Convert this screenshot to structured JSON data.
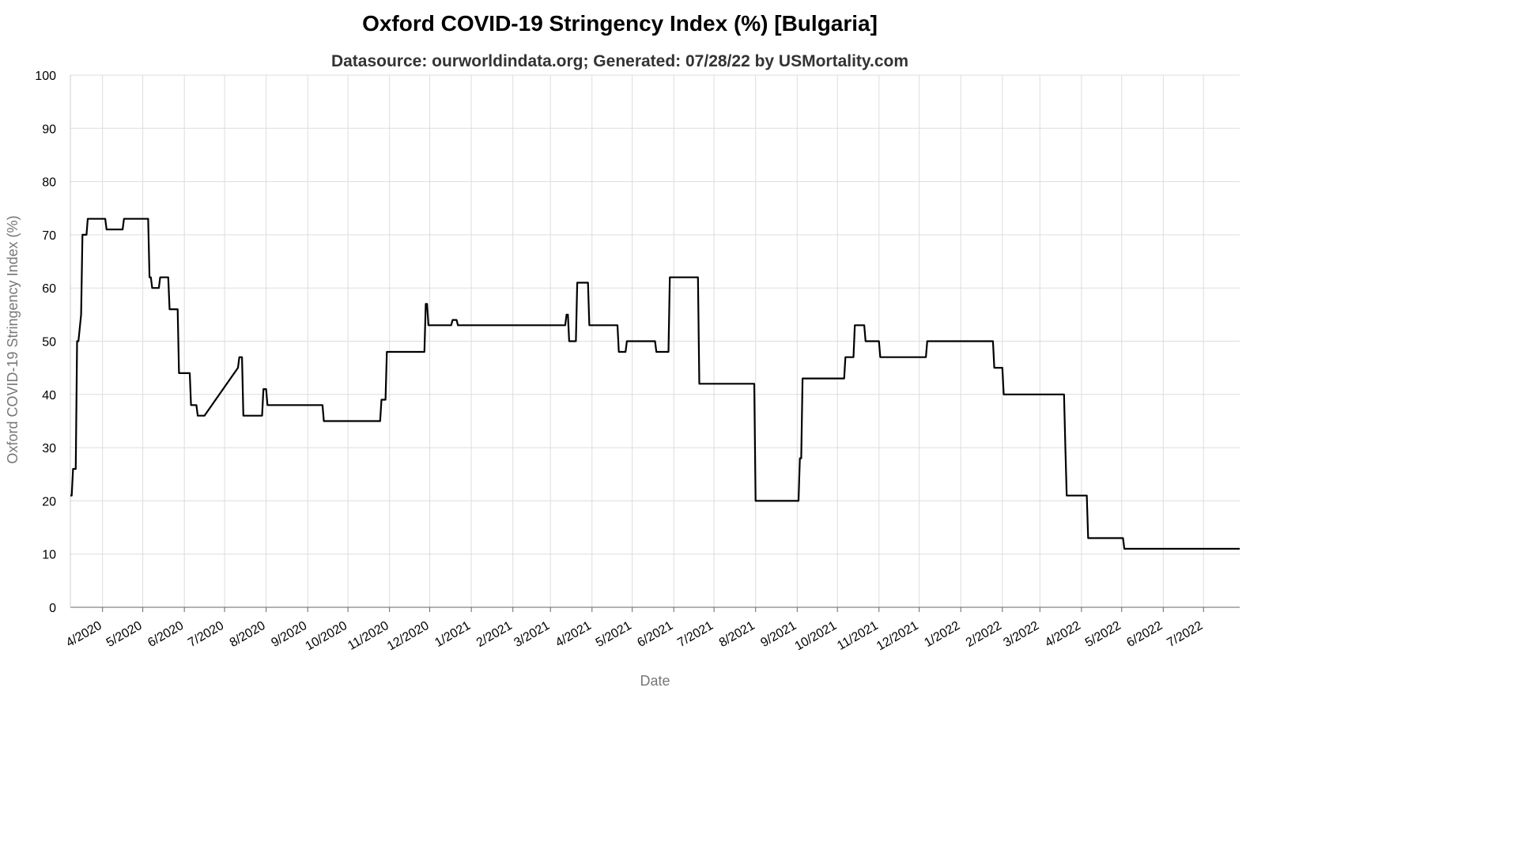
{
  "chart_data": {
    "type": "line",
    "title": "Oxford COVID-19 Stringency Index (%) [Bulgaria]",
    "subtitle": "Datasource: ourworldindata.org; Generated: 07/28/22 by USMortality.com",
    "xlabel": "Date",
    "ylabel": "Oxford COVID-19 Stringency Index (%)",
    "ylim": [
      0,
      100
    ],
    "yticks": [
      0,
      10,
      20,
      30,
      40,
      50,
      60,
      70,
      80,
      90,
      100
    ],
    "xlim": [
      "2020-03-08",
      "2022-07-28"
    ],
    "xticks": [
      {
        "date": "2020-04-01",
        "label": "4/2020"
      },
      {
        "date": "2020-05-01",
        "label": "5/2020"
      },
      {
        "date": "2020-06-01",
        "label": "6/2020"
      },
      {
        "date": "2020-07-01",
        "label": "7/2020"
      },
      {
        "date": "2020-08-01",
        "label": "8/2020"
      },
      {
        "date": "2020-09-01",
        "label": "9/2020"
      },
      {
        "date": "2020-10-01",
        "label": "10/2020"
      },
      {
        "date": "2020-11-01",
        "label": "11/2020"
      },
      {
        "date": "2020-12-01",
        "label": "12/2020"
      },
      {
        "date": "2021-01-01",
        "label": "1/2021"
      },
      {
        "date": "2021-02-01",
        "label": "2/2021"
      },
      {
        "date": "2021-03-01",
        "label": "3/2021"
      },
      {
        "date": "2021-04-01",
        "label": "4/2021"
      },
      {
        "date": "2021-05-01",
        "label": "5/2021"
      },
      {
        "date": "2021-06-01",
        "label": "6/2021"
      },
      {
        "date": "2021-07-01",
        "label": "7/2021"
      },
      {
        "date": "2021-08-01",
        "label": "8/2021"
      },
      {
        "date": "2021-09-01",
        "label": "9/2021"
      },
      {
        "date": "2021-10-01",
        "label": "10/2021"
      },
      {
        "date": "2021-11-01",
        "label": "11/2021"
      },
      {
        "date": "2021-12-01",
        "label": "12/2021"
      },
      {
        "date": "2022-01-01",
        "label": "1/2022"
      },
      {
        "date": "2022-02-01",
        "label": "2/2022"
      },
      {
        "date": "2022-03-01",
        "label": "3/2022"
      },
      {
        "date": "2022-04-01",
        "label": "4/2022"
      },
      {
        "date": "2022-05-01",
        "label": "5/2022"
      },
      {
        "date": "2022-06-01",
        "label": "6/2022"
      },
      {
        "date": "2022-07-01",
        "label": "7/2022"
      }
    ],
    "grid": true,
    "line_color": "#000000",
    "series": [
      {
        "x": [
          "2020-03-08",
          "2020-03-09",
          "2020-03-10",
          "2020-03-12",
          "2020-03-13",
          "2020-03-14",
          "2020-03-16",
          "2020-03-17",
          "2020-03-18",
          "2020-03-20",
          "2020-03-21",
          "2020-03-24",
          "2020-03-25",
          "2020-04-03",
          "2020-04-04",
          "2020-04-16",
          "2020-04-17",
          "2020-05-05",
          "2020-05-06",
          "2020-05-07",
          "2020-05-08",
          "2020-05-10",
          "2020-05-13",
          "2020-05-14",
          "2020-05-20",
          "2020-05-21",
          "2020-05-27",
          "2020-05-28",
          "2020-06-05",
          "2020-06-06",
          "2020-06-10",
          "2020-06-11",
          "2020-06-15",
          "2020-06-16",
          "2020-07-11",
          "2020-07-12",
          "2020-07-14",
          "2020-07-15",
          "2020-07-29",
          "2020-07-30",
          "2020-08-01",
          "2020-08-02",
          "2020-09-12",
          "2020-09-13",
          "2020-10-25",
          "2020-10-26",
          "2020-10-29",
          "2020-10-30",
          "2020-11-27",
          "2020-11-28",
          "2020-11-29",
          "2020-11-30",
          "2020-12-17",
          "2020-12-18",
          "2020-12-21",
          "2020-12-22",
          "2021-03-12",
          "2021-03-13",
          "2021-03-14",
          "2021-03-15",
          "2021-03-20",
          "2021-03-21",
          "2021-03-29",
          "2021-03-30",
          "2021-04-20",
          "2021-04-21",
          "2021-04-26",
          "2021-04-27",
          "2021-05-18",
          "2021-05-19",
          "2021-05-28",
          "2021-05-29",
          "2021-06-19",
          "2021-06-20",
          "2021-07-31",
          "2021-08-01",
          "2021-09-02",
          "2021-09-03",
          "2021-09-04",
          "2021-09-05",
          "2021-10-06",
          "2021-10-07",
          "2021-10-13",
          "2021-10-14",
          "2021-10-21",
          "2021-10-22",
          "2021-11-01",
          "2021-11-02",
          "2021-12-06",
          "2021-12-07",
          "2022-01-25",
          "2022-01-26",
          "2022-02-01",
          "2022-02-02",
          "2022-03-19",
          "2022-03-20",
          "2022-03-21",
          "2022-04-05",
          "2022-04-06",
          "2022-05-02",
          "2022-05-03",
          "2022-07-28"
        ],
        "y": [
          21,
          21,
          26,
          26,
          50,
          50,
          55,
          70,
          70,
          70,
          73,
          73,
          73,
          73,
          71,
          71,
          73,
          73,
          62,
          62,
          60,
          60,
          60,
          62,
          62,
          56,
          56,
          44,
          44,
          38,
          38,
          36,
          36,
          36,
          45,
          47,
          47,
          36,
          36,
          41,
          41,
          38,
          38,
          35,
          35,
          39,
          39,
          48,
          48,
          57,
          57,
          53,
          53,
          54,
          54,
          53,
          53,
          55,
          55,
          50,
          50,
          61,
          61,
          53,
          53,
          48,
          48,
          50,
          50,
          48,
          48,
          62,
          62,
          42,
          42,
          20,
          20,
          28,
          28,
          43,
          43,
          47,
          47,
          53,
          53,
          50,
          50,
          47,
          47,
          50,
          50,
          45,
          45,
          40,
          40,
          30,
          21,
          21,
          13,
          13,
          11,
          11
        ]
      }
    ]
  }
}
